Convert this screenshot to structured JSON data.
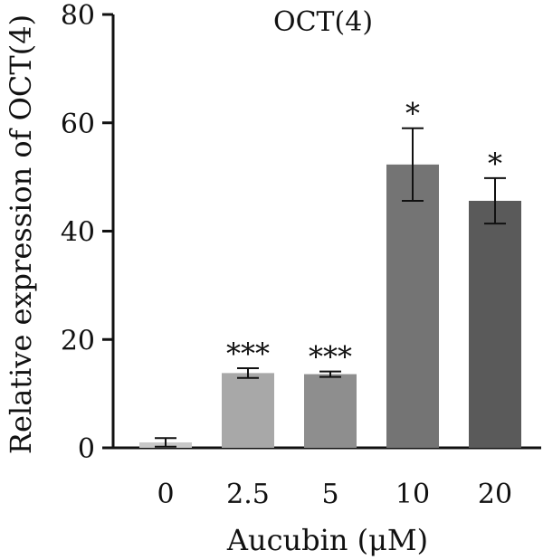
{
  "chart_data": {
    "type": "bar",
    "title": "OCT(4)",
    "xlabel": "Aucubin (μM)",
    "ylabel": "Relative expression of OCT(4)",
    "categories": [
      "0",
      "2.5",
      "5",
      "10",
      "20"
    ],
    "values": [
      1.0,
      13.8,
      13.6,
      52.3,
      45.6
    ],
    "errors": [
      0.8,
      0.9,
      0.5,
      6.7,
      4.2
    ],
    "significance": [
      "",
      "***",
      "***",
      "*",
      "*"
    ],
    "bar_colors": [
      "#c8c8c8",
      "#a8a8a8",
      "#8e8e8e",
      "#747474",
      "#5a5a5a"
    ],
    "ylim": [
      0,
      80
    ],
    "yticks": [
      0,
      20,
      40,
      60,
      80
    ],
    "grid": false,
    "legend": false
  }
}
